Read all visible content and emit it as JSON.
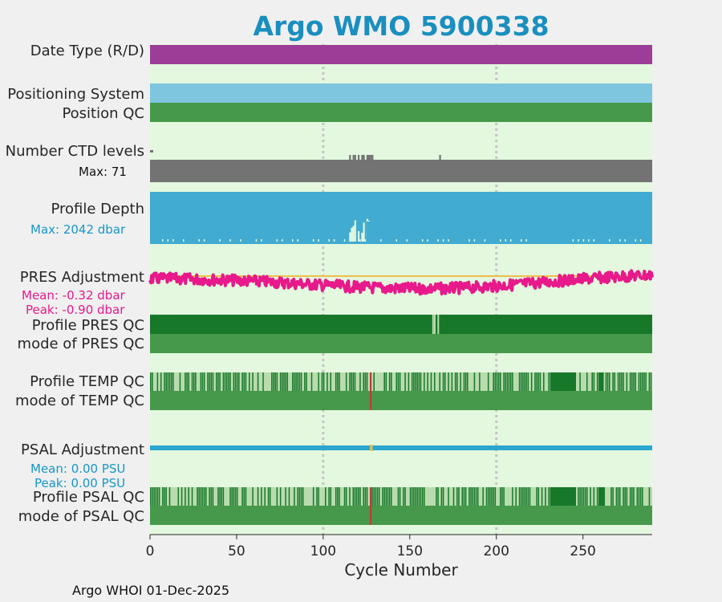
{
  "chart_data": {
    "type": "timeline",
    "title": "Argo WMO 5900338",
    "xlabel": "Cycle Number",
    "footer": "Argo WHOI 01-Dec-2025",
    "xlim": [
      0,
      290
    ],
    "xticks": [
      0,
      50,
      100,
      150,
      200,
      250
    ],
    "gridlines_x": [
      100,
      200
    ],
    "colors": {
      "title": "#1a8fbf",
      "panel_bg": "#e3f8de",
      "date_type": "#9c3e97",
      "positioning": "#7ec6e0",
      "qc_good": "#46994a",
      "qc_dark": "#17782a",
      "qc_light": "#b9dcae",
      "qc_bad": "#cc3333",
      "ctd": "#737373",
      "depth": "#41abd1",
      "pres_adj": "#e8198b",
      "reference": "#f0bf4a",
      "psal_adj": "#2aa6cf",
      "cyan_text": "#1896c8",
      "magenta_text": "#e8198b"
    },
    "rows": {
      "date_type": "Date Type (R/D)",
      "positioning": "Positioning System",
      "position_qc": "Position QC",
      "ctd_levels": "Number CTD levels",
      "ctd_max": "Max: 71",
      "profile_depth": "Profile Depth",
      "depth_max": "Max: 2042 dbar",
      "pres_adj": "PRES Adjustment",
      "pres_mean": "Mean: -0.32 dbar",
      "pres_peak": "Peak: -0.90 dbar",
      "profile_pres_qc": "Profile PRES QC",
      "mode_pres_qc": "mode of PRES QC",
      "profile_temp_qc": "Profile TEMP QC",
      "mode_temp_qc": "mode of TEMP QC",
      "psal_adj": "PSAL Adjustment",
      "psal_mean": "Mean: 0.00 PSU",
      "psal_peak": "Peak: 0.00 PSU",
      "profile_psal_qc": "Profile PSAL QC",
      "mode_psal_qc": "mode of PSAL QC"
    },
    "series": {
      "pres_light_cycles": [
        163,
        164,
        166
      ],
      "temp_bad_cycle": 127,
      "psal_bad_cycle": 127,
      "psal_gap_cycle": 127,
      "ctd_dip_cycles": [
        115,
        117,
        118,
        120,
        122,
        123,
        125,
        126,
        127,
        128,
        167
      ],
      "depth_spike_cycles": [
        115,
        116,
        117,
        118,
        120,
        122,
        123,
        125,
        126,
        127,
        128
      ],
      "temp_dark_runs": [
        [
          231,
          246
        ],
        [
          259,
          262
        ]
      ],
      "psal_dark_runs": [
        [
          231,
          246
        ],
        [
          259,
          262
        ]
      ]
    }
  }
}
